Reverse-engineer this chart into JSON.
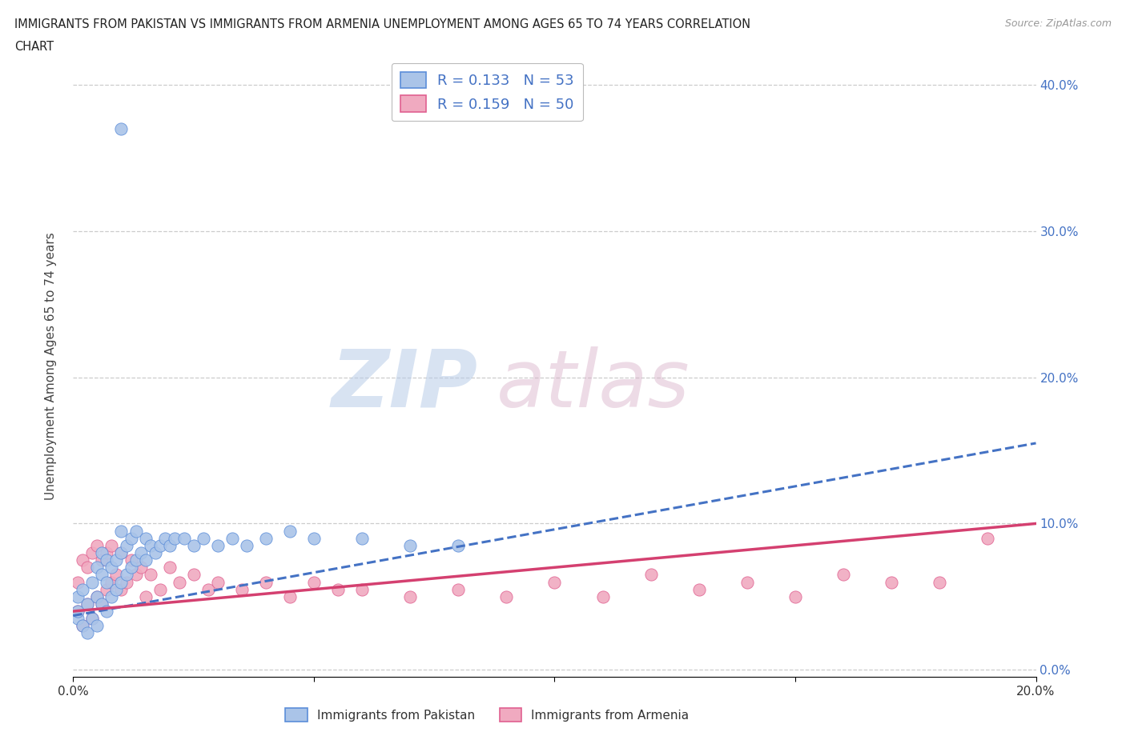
{
  "title_line1": "IMMIGRANTS FROM PAKISTAN VS IMMIGRANTS FROM ARMENIA UNEMPLOYMENT AMONG AGES 65 TO 74 YEARS CORRELATION",
  "title_line2": "CHART",
  "source": "Source: ZipAtlas.com",
  "ylabel": "Unemployment Among Ages 65 to 74 years",
  "xlim": [
    0.0,
    0.2
  ],
  "ylim": [
    -0.005,
    0.42
  ],
  "xticks": [
    0.0,
    0.05,
    0.1,
    0.15,
    0.2
  ],
  "yticks": [
    0.0,
    0.1,
    0.2,
    0.3,
    0.4
  ],
  "xtick_labels": [
    "0.0%",
    "",
    "",
    "",
    "20.0%"
  ],
  "ytick_labels": [
    "",
    "10.0%",
    "20.0%",
    "30.0%",
    "40.0%"
  ],
  "pakistan_color": "#aac4e8",
  "armenia_color": "#f0aac0",
  "pakistan_edge_color": "#5b8dd9",
  "armenia_edge_color": "#e06090",
  "pakistan_line_color": "#4472c4",
  "armenia_line_color": "#d44070",
  "pakistan_R": 0.133,
  "pakistan_N": 53,
  "armenia_R": 0.159,
  "armenia_N": 50,
  "background_color": "#ffffff",
  "grid_color": "#cccccc",
  "pk_x": [
    0.001,
    0.001,
    0.001,
    0.002,
    0.002,
    0.003,
    0.003,
    0.004,
    0.004,
    0.005,
    0.005,
    0.005,
    0.006,
    0.006,
    0.006,
    0.007,
    0.007,
    0.007,
    0.008,
    0.008,
    0.009,
    0.009,
    0.01,
    0.01,
    0.01,
    0.011,
    0.011,
    0.012,
    0.012,
    0.013,
    0.013,
    0.014,
    0.015,
    0.015,
    0.016,
    0.017,
    0.018,
    0.019,
    0.02,
    0.021,
    0.023,
    0.025,
    0.027,
    0.03,
    0.033,
    0.036,
    0.04,
    0.045,
    0.05,
    0.06,
    0.07,
    0.08,
    0.01
  ],
  "pk_y": [
    0.035,
    0.04,
    0.05,
    0.03,
    0.055,
    0.025,
    0.045,
    0.035,
    0.06,
    0.03,
    0.05,
    0.07,
    0.045,
    0.065,
    0.08,
    0.04,
    0.06,
    0.075,
    0.05,
    0.07,
    0.055,
    0.075,
    0.06,
    0.08,
    0.095,
    0.065,
    0.085,
    0.07,
    0.09,
    0.075,
    0.095,
    0.08,
    0.075,
    0.09,
    0.085,
    0.08,
    0.085,
    0.09,
    0.085,
    0.09,
    0.09,
    0.085,
    0.09,
    0.085,
    0.09,
    0.085,
    0.09,
    0.095,
    0.09,
    0.09,
    0.085,
    0.085,
    0.37
  ],
  "ar_x": [
    0.001,
    0.001,
    0.002,
    0.002,
    0.003,
    0.003,
    0.004,
    0.004,
    0.005,
    0.005,
    0.006,
    0.006,
    0.007,
    0.007,
    0.008,
    0.008,
    0.009,
    0.01,
    0.01,
    0.011,
    0.012,
    0.013,
    0.014,
    0.015,
    0.016,
    0.018,
    0.02,
    0.022,
    0.025,
    0.028,
    0.03,
    0.035,
    0.04,
    0.045,
    0.05,
    0.055,
    0.06,
    0.07,
    0.08,
    0.09,
    0.1,
    0.11,
    0.12,
    0.13,
    0.14,
    0.15,
    0.16,
    0.17,
    0.18,
    0.19
  ],
  "ar_y": [
    0.04,
    0.06,
    0.03,
    0.075,
    0.045,
    0.07,
    0.035,
    0.08,
    0.05,
    0.085,
    0.045,
    0.075,
    0.055,
    0.08,
    0.06,
    0.085,
    0.065,
    0.055,
    0.08,
    0.06,
    0.075,
    0.065,
    0.07,
    0.05,
    0.065,
    0.055,
    0.07,
    0.06,
    0.065,
    0.055,
    0.06,
    0.055,
    0.06,
    0.05,
    0.06,
    0.055,
    0.055,
    0.05,
    0.055,
    0.05,
    0.06,
    0.05,
    0.065,
    0.055,
    0.06,
    0.05,
    0.065,
    0.06,
    0.06,
    0.09
  ],
  "pk_trend_x": [
    0.0,
    0.2
  ],
  "pk_trend_y": [
    0.037,
    0.155
  ],
  "ar_trend_x": [
    0.0,
    0.2
  ],
  "ar_trend_y": [
    0.04,
    0.1
  ]
}
